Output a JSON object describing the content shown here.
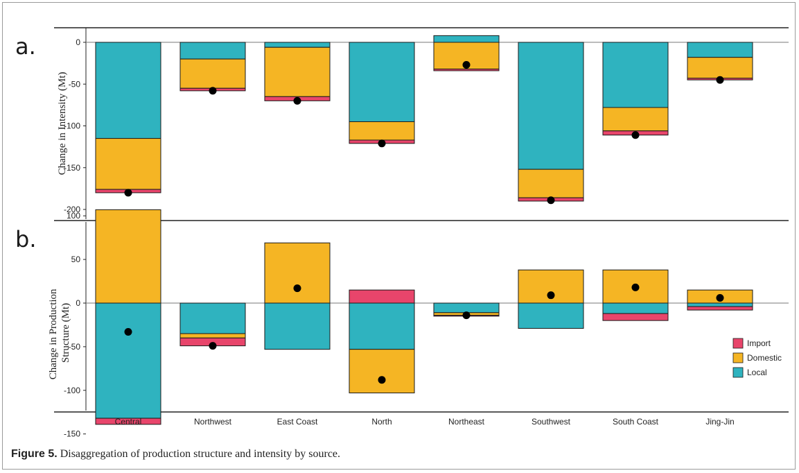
{
  "figure": {
    "caption_label": "Figure 5.",
    "caption_text": "Disaggregation of production structure and intensity by source."
  },
  "colors": {
    "Import": "#e8456b",
    "Domestic": "#f5b524",
    "Local": "#2fb3bf",
    "point": "#000000"
  },
  "legend": {
    "items": [
      "Import",
      "Domestic",
      "Local"
    ],
    "position": "bottom-right"
  },
  "chart_data": [
    {
      "panel": "a.",
      "type": "bar",
      "stacked": true,
      "ylabel": "Change in Intensity (Mt)",
      "ylim": [
        -205,
        20
      ],
      "yticks": [
        0,
        -50,
        -100,
        -150,
        -200
      ],
      "categories": [
        "Central",
        "Northwest",
        "East Coast",
        "North",
        "Northeast",
        "Southwest",
        "South Coast",
        "Jing-Jin"
      ],
      "series": [
        {
          "name": "Local",
          "values": [
            -115,
            -20,
            -6,
            -95,
            8,
            -152,
            -78,
            -18
          ]
        },
        {
          "name": "Domestic",
          "values": [
            -61,
            -35,
            -59,
            -22,
            -32,
            -34,
            -28,
            -25
          ]
        },
        {
          "name": "Import",
          "values": [
            -4,
            -3,
            -5,
            -4,
            -2,
            -4,
            -5,
            -2
          ]
        }
      ],
      "net": [
        -180,
        -58,
        -70,
        -121,
        -27,
        -189,
        -111,
        -45
      ]
    },
    {
      "panel": "b.",
      "type": "bar",
      "stacked": true,
      "ylabel": "Change in Production Structure (Mt)",
      "ylim": [
        -155,
        112
      ],
      "yticks": [
        100,
        50,
        0,
        -50,
        -100,
        -150
      ],
      "categories": [
        "Central",
        "Northwest",
        "East Coast",
        "North",
        "Northeast",
        "Southwest",
        "South Coast",
        "Jing-Jin"
      ],
      "series": [
        {
          "name": "Local",
          "values": [
            -132,
            -35,
            -53,
            -53,
            -11,
            -29,
            -12,
            -4
          ]
        },
        {
          "name": "Domestic",
          "values": [
            107,
            -5,
            69,
            -50,
            -3,
            38,
            38,
            15
          ]
        },
        {
          "name": "Import",
          "values": [
            -7,
            -9,
            0,
            15,
            -1,
            0,
            -8,
            -4
          ]
        }
      ],
      "net": [
        -33,
        -49,
        17,
        -88,
        -14,
        9,
        18,
        6
      ]
    }
  ]
}
